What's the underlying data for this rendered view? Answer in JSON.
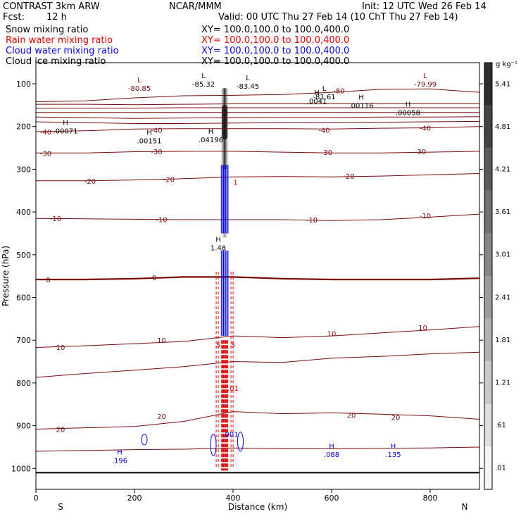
{
  "header": {
    "title": "CONTRAST  3km ARW",
    "center": "NCAR/MMM",
    "init": "Init: 12 UTC Wed 26 Feb 14",
    "fcst_label": "Fcst:",
    "fcst_value": "12 h",
    "valid": "Valid: 00 UTC Thu 27 Feb 14 (10 ChT Thu 27 Feb 14)"
  },
  "fields": [
    {
      "name": "Snow mixing ratio",
      "xy": "XY= 100.0,100.0 to 100.0,400.0",
      "color": "#000000"
    },
    {
      "name": "Rain water mixing ratio",
      "xy": "XY= 100.0,100.0 to 100.0,400.0",
      "color": "#e00000"
    },
    {
      "name": "Cloud water mixing ratio",
      "xy": "XY= 100.0,100.0 to 100.0,400.0",
      "color": "#0000e0"
    },
    {
      "name": "Cloud ice mixing ratio",
      "xy": "XY= 100.0,100.0 to 100.0,400.0",
      "color": "#000000"
    }
  ],
  "chart_data": {
    "type": "cross-section",
    "xlabel": "Distance (km)",
    "ylabel": "Pressure (hPa)",
    "xlim": [
      0,
      900
    ],
    "ylim": [
      1050,
      60
    ],
    "x_ticks": [
      0,
      200,
      400,
      600,
      800
    ],
    "y_ticks": [
      100,
      200,
      300,
      400,
      500,
      600,
      700,
      800,
      900,
      1000
    ],
    "x_end_labels": {
      "left": "S",
      "right": "N"
    },
    "surface_pressure": 1010,
    "colorbar": {
      "unit": "g kg⁻¹",
      "ticks": [
        ".01",
        ".61",
        "1.21",
        "1.81",
        "2.41",
        "3.01",
        "3.61",
        "4.21",
        "4.81",
        "5.41"
      ]
    },
    "isotherms": [
      {
        "temp": "-80",
        "p": [
          142,
          140,
          133,
          128,
          127,
          125,
          120,
          113,
          112,
          120
        ]
      },
      {
        "temp": "",
        "p": [
          148,
          148,
          149,
          148,
          147,
          147,
          147,
          147,
          147,
          147
        ]
      },
      {
        "temp": "",
        "p": [
          157,
          157,
          157,
          156,
          156,
          156,
          156,
          156,
          156,
          156
        ]
      },
      {
        "temp": "",
        "p": [
          167,
          167,
          167,
          167,
          167,
          167,
          167,
          167,
          167,
          167
        ]
      },
      {
        "temp": "",
        "p": [
          178,
          179,
          181,
          180,
          179,
          179,
          179,
          178,
          178,
          177
        ]
      },
      {
        "temp": "",
        "p": [
          189,
          191,
          193,
          193,
          192,
          191,
          191,
          190,
          189,
          188
        ]
      },
      {
        "temp": "-40",
        "p": [
          212,
          210,
          206,
          205,
          205,
          205,
          206,
          204,
          203,
          200
        ]
      },
      {
        "temp": "-30",
        "p": [
          262,
          262,
          259,
          258,
          258,
          260,
          262,
          262,
          260,
          258
        ]
      },
      {
        "temp": "-20",
        "p": [
          327,
          327,
          325,
          322,
          318,
          317,
          318,
          316,
          313,
          310
        ]
      },
      {
        "temp": "-10",
        "p": [
          415,
          416,
          417,
          418,
          418,
          418,
          420,
          418,
          412,
          405
        ]
      },
      {
        "temp": "0",
        "p": [
          558,
          558,
          556,
          552,
          552,
          556,
          558,
          558,
          558,
          555
        ]
      },
      {
        "temp": "10",
        "p": [
          717,
          713,
          708,
          703,
          690,
          694,
          690,
          683,
          676,
          668
        ]
      },
      {
        "temp": "",
        "p": [
          787,
          778,
          770,
          762,
          750,
          752,
          742,
          738,
          732,
          728
        ]
      },
      {
        "temp": "20",
        "p": [
          908,
          905,
          902,
          890,
          867,
          872,
          870,
          873,
          877,
          885
        ]
      },
      {
        "temp": "",
        "p": [
          960,
          958,
          956,
          955,
          952,
          954,
          954,
          953,
          952,
          950
        ]
      }
    ],
    "isotherm_labels": [
      {
        "text": "-80",
        "x": 615,
        "p": 116
      },
      {
        "text": "-40",
        "x": 20,
        "p": 212
      },
      {
        "text": "-40",
        "x": 245,
        "p": 208
      },
      {
        "text": "-40",
        "x": 585,
        "p": 208
      },
      {
        "text": "-40",
        "x": 790,
        "p": 203
      },
      {
        "text": "-30",
        "x": 20,
        "p": 262
      },
      {
        "text": "-30",
        "x": 245,
        "p": 258
      },
      {
        "text": "-30",
        "x": 590,
        "p": 260
      },
      {
        "text": "-30",
        "x": 780,
        "p": 258
      },
      {
        "text": "-20",
        "x": 110,
        "p": 327
      },
      {
        "text": "-20",
        "x": 270,
        "p": 323
      },
      {
        "text": "-20",
        "x": 635,
        "p": 316
      },
      {
        "text": "-10",
        "x": 40,
        "p": 415
      },
      {
        "text": "-10",
        "x": 255,
        "p": 417
      },
      {
        "text": "-10",
        "x": 560,
        "p": 418
      },
      {
        "text": "-10",
        "x": 790,
        "p": 408
      },
      {
        "text": "0",
        "x": 25,
        "p": 558
      },
      {
        "text": "0",
        "x": 240,
        "p": 553
      },
      {
        "text": "10",
        "x": 50,
        "p": 716
      },
      {
        "text": "10",
        "x": 255,
        "p": 700
      },
      {
        "text": "10",
        "x": 600,
        "p": 684
      },
      {
        "text": "10",
        "x": 785,
        "p": 670
      },
      {
        "text": "20",
        "x": 50,
        "p": 908
      },
      {
        "text": "20",
        "x": 255,
        "p": 878
      },
      {
        "text": "20",
        "x": 640,
        "p": 875
      },
      {
        "text": "20",
        "x": 730,
        "p": 880
      }
    ],
    "highs_lows": [
      {
        "kind": "L",
        "value": "-80.85",
        "x": 210,
        "p": 105,
        "color": "#7a0a0a"
      },
      {
        "kind": "L",
        "value": "-85.32",
        "x": 340,
        "p": 95,
        "color": "#000000"
      },
      {
        "kind": "L",
        "value": "-83.45",
        "x": 430,
        "p": 100,
        "color": "#000000"
      },
      {
        "kind": "L",
        "value": "-79.99",
        "x": 790,
        "p": 95,
        "color": "#7a0a0a"
      },
      {
        "kind": "L",
        "value": "-81.61",
        "x": 585,
        "p": 125,
        "color": "#000000"
      },
      {
        "kind": "H",
        "value": ".0041",
        "x": 570,
        "p": 135,
        "color": "#000000"
      },
      {
        "kind": "H",
        "value": ".00116",
        "x": 660,
        "p": 145,
        "color": "#000000"
      },
      {
        "kind": "H",
        "value": ".00058",
        "x": 755,
        "p": 162,
        "color": "#000000"
      },
      {
        "kind": "H",
        "value": ".00071",
        "x": 60,
        "p": 205,
        "color": "#000000"
      },
      {
        "kind": "H",
        "value": ".00151",
        "x": 230,
        "p": 228,
        "color": "#000000"
      },
      {
        "kind": "H",
        "value": ".04196",
        "x": 355,
        "p": 225,
        "color": "#000000"
      },
      {
        "kind": "H",
        "value": "1.48",
        "x": 370,
        "p": 478,
        "color": "#000000"
      },
      {
        "kind": "H",
        "value": ".196",
        "x": 170,
        "p": 976,
        "color": "#0000e0"
      },
      {
        "kind": "H",
        "value": ".088",
        "x": 600,
        "p": 962,
        "color": "#0000e0"
      },
      {
        "kind": "H",
        "value": ".135",
        "x": 725,
        "p": 962,
        "color": "#0000e0"
      }
    ],
    "contour_labels": [
      {
        "text": "5",
        "x": 370,
        "p": 710,
        "color": "#e00000"
      },
      {
        "text": "5",
        "x": 400,
        "p": 710,
        "color": "#e00000"
      },
      {
        "text": ".01",
        "x": 400,
        "p": 812,
        "color": "#e00000"
      },
      {
        "text": "1",
        "x": 405,
        "p": 330,
        "color": "#e00000"
      },
      {
        "text": ".001",
        "x": 395,
        "p": 920,
        "color": "#0000e0"
      }
    ]
  }
}
